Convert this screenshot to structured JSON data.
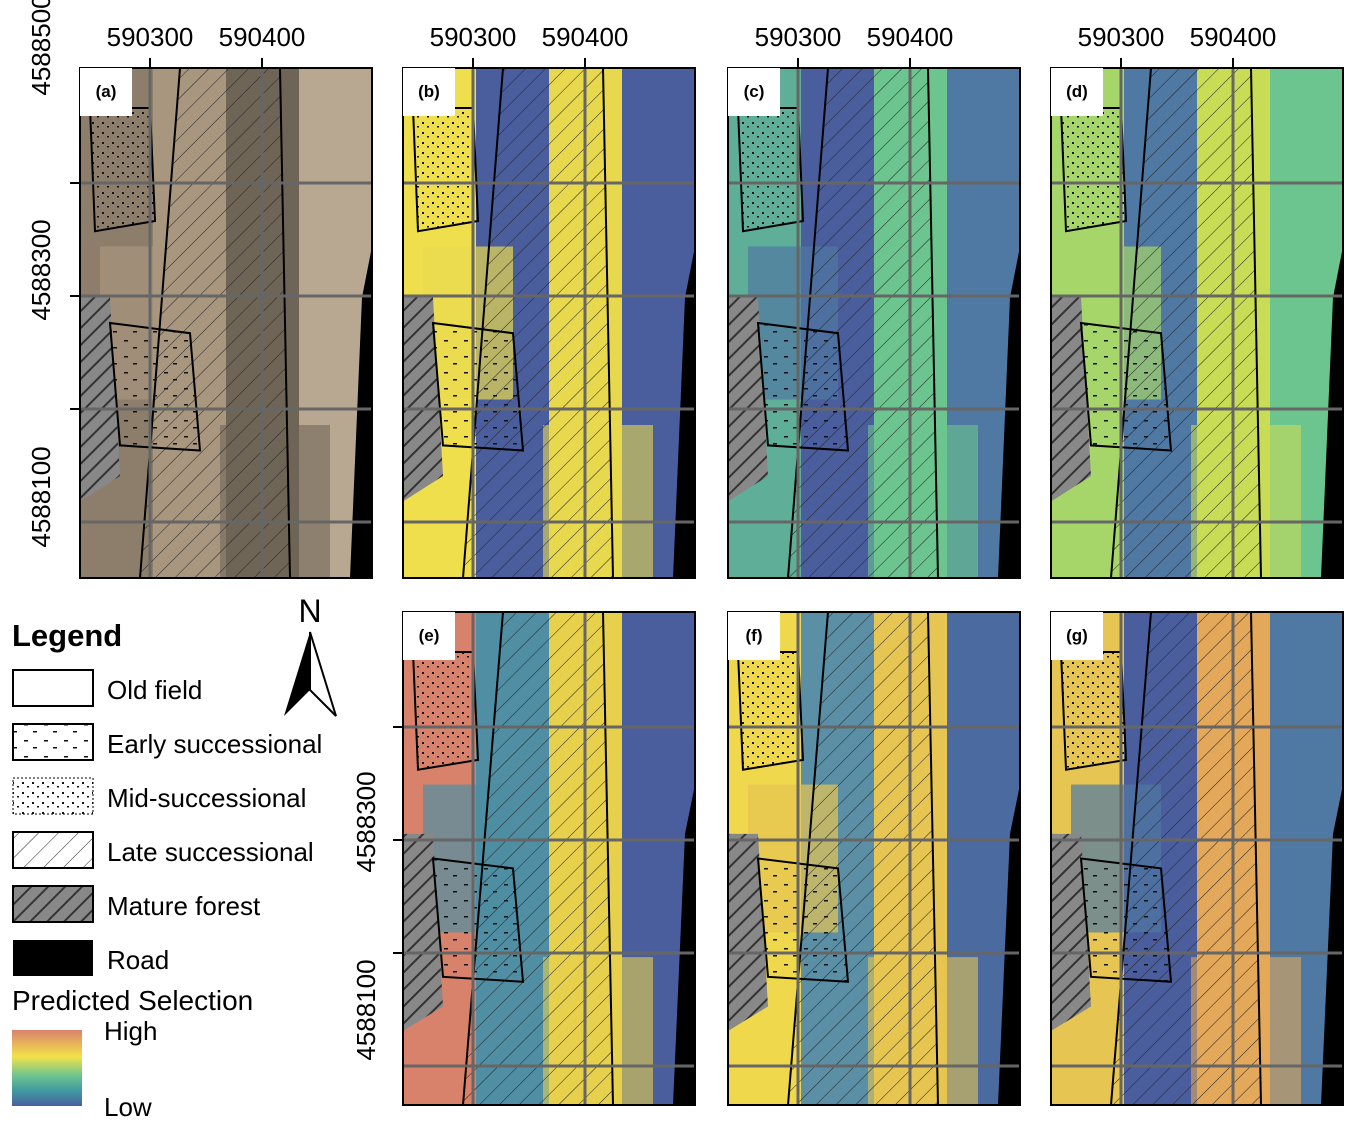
{
  "panels": [
    {
      "label": "(a)"
    },
    {
      "label": "(b)"
    },
    {
      "label": "(c)"
    },
    {
      "label": "(d)"
    },
    {
      "label": "(e)"
    },
    {
      "label": "(f)"
    },
    {
      "label": "(g)"
    }
  ],
  "top_axis": {
    "ticks": [
      "590300",
      "590400"
    ]
  },
  "left_axis_top": {
    "ticks": [
      "4588500",
      "4588300",
      "4588100"
    ]
  },
  "left_axis_bottom": {
    "ticks": [
      "4588300",
      "4588100"
    ]
  },
  "north": "N",
  "legend": {
    "title": "Legend",
    "items": [
      "Old field",
      "Early successional",
      "Mid-successional",
      "Late successional",
      "Mature forest",
      "Road"
    ]
  },
  "scale": {
    "title": "Predicted Selection",
    "high": "High",
    "low": "Low"
  }
}
